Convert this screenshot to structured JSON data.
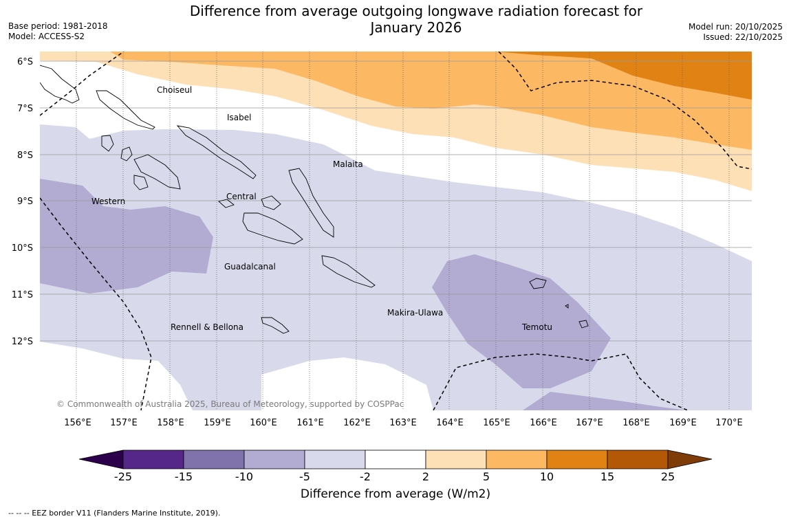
{
  "title_line1": "Difference from average outgoing longwave radiation forecast for",
  "title_line2": "January 2026",
  "base_period": "Base period: 1981-2018",
  "model": "Model: ACCESS-S2",
  "model_run": "Model run: 20/10/2025",
  "issued": "Issued: 22/10/2025",
  "latitude_labels": [
    "6°S",
    "7°S",
    "8°S",
    "9°S",
    "10°S",
    "11°S",
    "12°S"
  ],
  "longitude_labels": [
    "156°E",
    "157°E",
    "158°E",
    "159°E",
    "160°E",
    "161°E",
    "162°E",
    "163°E",
    "164°E",
    "165°E",
    "166°E",
    "167°E",
    "168°E",
    "169°E",
    "170°E"
  ],
  "regions": [
    "Choiseul",
    "Isabel",
    "Malaita",
    "Western",
    "Central",
    "Guadalcanal",
    "Makira-Ulawa",
    "Rennell & Bellona",
    "Temotu"
  ],
  "copyright": "© Commonwealth of Australia 2025, Bureau of Meteorology, supported by COSPPac",
  "colorbar": {
    "title": "Difference from average (W/m2)",
    "ticks": [
      "-25",
      "-15",
      "-10",
      "-5",
      "-2",
      "2",
      "5",
      "10",
      "15",
      "25"
    ],
    "colors": {
      "lt_-25": "#2d004b",
      "-25_-15": "#542788",
      "-15_-10": "#8073ac",
      "-10_-5": "#b2abd2",
      "-5_-2": "#d8daeb",
      "-2_2": "#ffffff",
      "2_5": "#fee0b6",
      "5_10": "#fdb863",
      "10_15": "#e08214",
      "15_25": "#b35806",
      "gt_25": "#7f3b08"
    }
  },
  "legend_text": "--  --  -- EEZ border V11 (Flanders Marine Institute, 2019)."
}
